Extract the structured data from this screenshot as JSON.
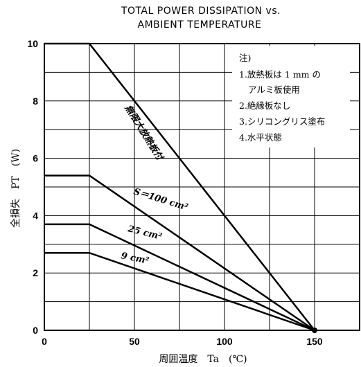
{
  "chart_data": {
    "type": "line",
    "title_lines": [
      "TOTAL POWER DISSIPATION vs.",
      "AMBIENT TEMPERATURE"
    ],
    "xlabel": "周囲温度　Ta　(℃)",
    "ylabel": "全損失　PT　(W)",
    "xlim": [
      0,
      175
    ],
    "ylim": [
      0,
      10
    ],
    "x_ticks": [
      0,
      50,
      100,
      150
    ],
    "y_ticks": [
      0,
      2,
      4,
      6,
      8,
      10
    ],
    "grid": true,
    "series": [
      {
        "name": "無限大放熱板付",
        "x": [
          0,
          25,
          150
        ],
        "y": [
          10,
          10,
          0
        ]
      },
      {
        "name": "S＝100 cm²",
        "x": [
          0,
          25,
          150
        ],
        "y": [
          5.4,
          5.4,
          0
        ]
      },
      {
        "name": "25 cm²",
        "x": [
          0,
          25,
          150
        ],
        "y": [
          3.7,
          3.7,
          0
        ]
      },
      {
        "name": "9 cm²",
        "x": [
          0,
          25,
          150
        ],
        "y": [
          2.7,
          2.7,
          0
        ]
      }
    ],
    "notes": [
      "注)",
      "1.放熱板は 1 mm の",
      "アルミ板使用",
      "2.絶縁板なし",
      "3.シリコングリス塗布",
      "4.水平状態"
    ]
  }
}
